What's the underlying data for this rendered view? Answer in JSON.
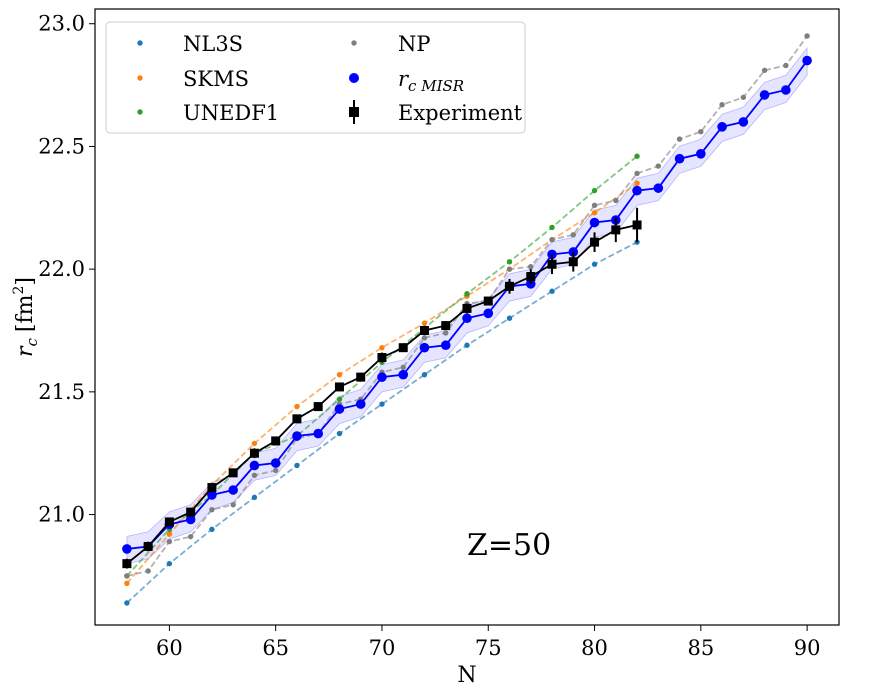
{
  "chart_data": {
    "type": "line",
    "xlabel": "N",
    "ylabel_main": "r",
    "ylabel_sub": "c",
    "ylabel_unit_prefix": "[fm",
    "ylabel_unit_exp": "2",
    "ylabel_unit_suffix": "]",
    "xlim": [
      56.5,
      91.5
    ],
    "ylim": [
      20.55,
      23.06
    ],
    "xticks": [
      60,
      65,
      70,
      75,
      80,
      85,
      90
    ],
    "yticks": [
      21.0,
      21.5,
      22.0,
      22.5,
      23.0
    ],
    "xtick_labels": [
      "60",
      "65",
      "70",
      "75",
      "80",
      "85",
      "90"
    ],
    "ytick_labels": [
      "21.0",
      "21.5",
      "22.0",
      "22.5",
      "23.0"
    ],
    "grid": false,
    "legend_position": "top-left",
    "annotation": "Z=50",
    "series": [
      {
        "name": "NL3S",
        "color": "#1f77b4",
        "style": "dashed-markers",
        "x": [
          58,
          60,
          62,
          64,
          66,
          68,
          70,
          72,
          74,
          76,
          78,
          80,
          82
        ],
        "y": [
          20.64,
          20.8,
          20.94,
          21.07,
          21.2,
          21.33,
          21.45,
          21.57,
          21.69,
          21.8,
          21.91,
          22.02,
          22.11
        ]
      },
      {
        "name": "SKMS",
        "color": "#ff7f0e",
        "style": "dashed-markers",
        "x": [
          58,
          60,
          62,
          64,
          66,
          68,
          70,
          72,
          74,
          76,
          78,
          80,
          82
        ],
        "y": [
          20.72,
          20.92,
          21.12,
          21.29,
          21.44,
          21.57,
          21.68,
          21.78,
          21.89,
          22.0,
          22.12,
          22.23,
          22.35
        ]
      },
      {
        "name": "UNEDF1",
        "color": "#2ca02c",
        "style": "dashed-markers",
        "x": [
          58,
          60,
          62,
          64,
          66,
          68,
          70,
          72,
          74,
          76,
          78,
          80,
          82
        ],
        "y": [
          20.75,
          20.94,
          21.08,
          21.25,
          21.32,
          21.47,
          21.62,
          21.76,
          21.9,
          22.03,
          22.17,
          22.32,
          22.46
        ]
      },
      {
        "name": "NP",
        "color": "#7f7f7f",
        "style": "dashed-markers",
        "x": [
          58,
          59,
          60,
          61,
          62,
          63,
          64,
          65,
          66,
          67,
          68,
          69,
          70,
          71,
          72,
          73,
          74,
          75,
          76,
          77,
          78,
          79,
          80,
          81,
          82,
          83,
          84,
          85,
          86,
          87,
          88,
          89,
          90
        ],
        "y": [
          20.75,
          20.77,
          20.89,
          20.91,
          21.02,
          21.04,
          21.16,
          21.18,
          21.31,
          21.33,
          21.45,
          21.47,
          21.58,
          21.6,
          21.72,
          21.74,
          21.86,
          21.87,
          22.0,
          22.01,
          22.12,
          22.14,
          22.26,
          22.28,
          22.39,
          22.42,
          22.53,
          22.56,
          22.67,
          22.7,
          22.81,
          22.83,
          22.95
        ]
      },
      {
        "name_main": "r",
        "name_sub": "c MISR",
        "color": "#0000ff",
        "style": "solid-markers-band",
        "x": [
          58,
          59,
          60,
          61,
          62,
          63,
          64,
          65,
          66,
          67,
          68,
          69,
          70,
          71,
          72,
          73,
          74,
          75,
          76,
          77,
          78,
          79,
          80,
          81,
          82,
          83,
          84,
          85,
          86,
          87,
          88,
          89,
          90
        ],
        "y": [
          20.86,
          20.87,
          20.96,
          20.98,
          21.08,
          21.1,
          21.2,
          21.21,
          21.32,
          21.33,
          21.43,
          21.45,
          21.56,
          21.57,
          21.68,
          21.69,
          21.8,
          21.82,
          21.93,
          21.94,
          22.06,
          22.07,
          22.19,
          22.2,
          22.32,
          22.33,
          22.45,
          22.47,
          22.58,
          22.6,
          22.71,
          22.73,
          22.85
        ],
        "band_halfwidth": 0.06
      },
      {
        "name": "Experiment",
        "color": "#000000",
        "style": "solid-square-errorbars",
        "x": [
          58,
          59,
          60,
          61,
          62,
          63,
          64,
          65,
          66,
          67,
          68,
          69,
          70,
          71,
          72,
          73,
          74,
          75,
          76,
          77,
          78,
          79,
          80,
          81,
          82
        ],
        "y": [
          20.8,
          20.87,
          20.97,
          21.01,
          21.11,
          21.17,
          21.25,
          21.3,
          21.39,
          21.44,
          21.52,
          21.56,
          21.64,
          21.68,
          21.75,
          21.77,
          21.84,
          21.87,
          21.93,
          21.97,
          22.02,
          22.03,
          22.11,
          22.16,
          22.18
        ],
        "yerr": [
          0.02,
          0.01,
          0.01,
          0.01,
          0.01,
          0.01,
          0.02,
          0.01,
          0.01,
          0.01,
          0.01,
          0.01,
          0.02,
          0.01,
          0.01,
          0.01,
          0.02,
          0.01,
          0.03,
          0.03,
          0.04,
          0.04,
          0.04,
          0.05,
          0.07
        ]
      }
    ]
  }
}
